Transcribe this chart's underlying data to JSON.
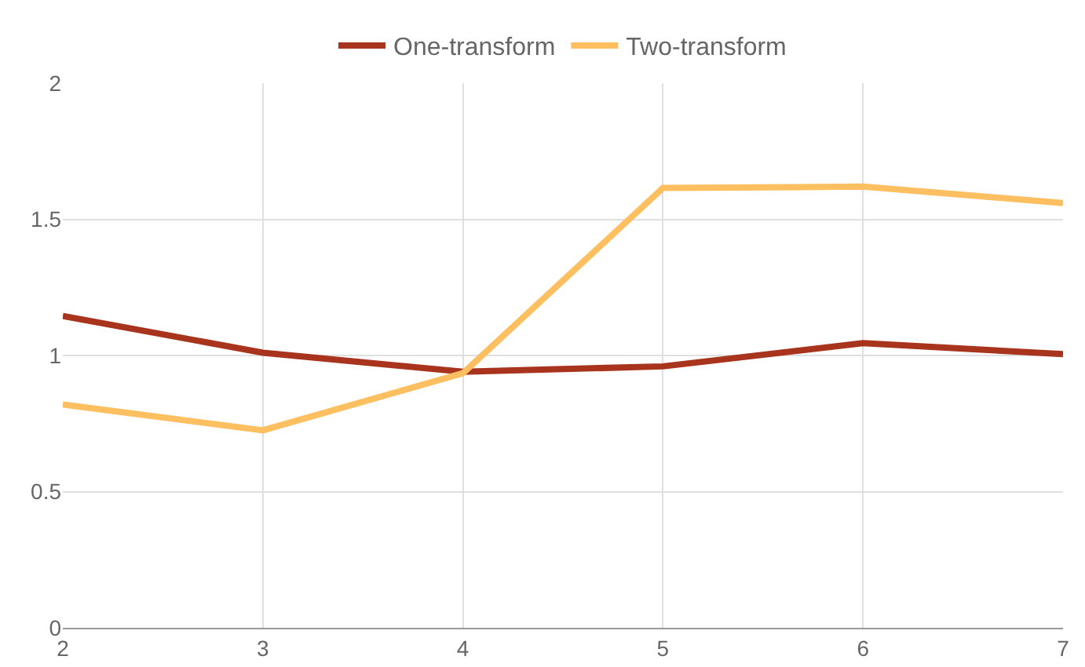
{
  "chart_data": {
    "type": "line",
    "x": [
      2,
      3,
      4,
      5,
      6,
      7
    ],
    "series": [
      {
        "name": "One-transform",
        "color": "#a8341d",
        "values": [
          1.145,
          1.01,
          0.94,
          0.96,
          1.045,
          1.005
        ]
      },
      {
        "name": "Two-transform",
        "color": "#fdbf5f",
        "values": [
          0.82,
          0.725,
          0.935,
          1.615,
          1.62,
          1.56
        ]
      }
    ],
    "xlim": [
      2,
      7
    ],
    "xticks": [
      2,
      3,
      4,
      5,
      6,
      7
    ],
    "ylim": [
      0,
      2
    ],
    "yticks": [
      0,
      0.5,
      1,
      1.5,
      2
    ],
    "grid": true,
    "legend": "top",
    "marker": "none",
    "line_style": "solid"
  }
}
